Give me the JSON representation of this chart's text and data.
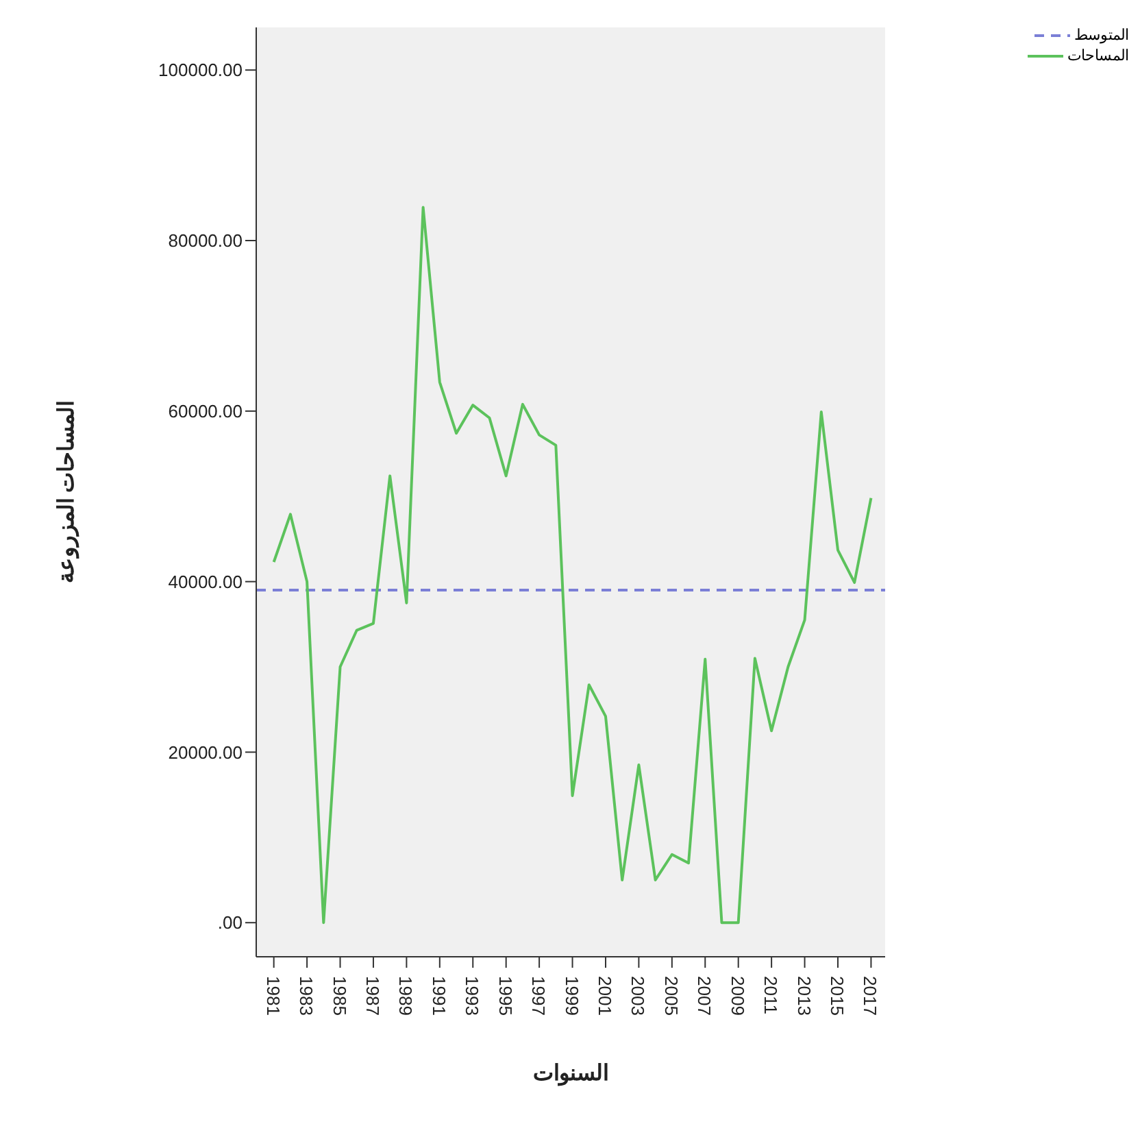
{
  "chart_data": {
    "type": "line",
    "xlabel": "السنوات",
    "ylabel": "المساحات المزروعة",
    "categories": [
      "1981",
      null,
      "1983",
      null,
      "1985",
      null,
      "1987",
      null,
      "1989",
      null,
      "1991",
      null,
      "1993",
      null,
      "1995",
      null,
      "1997",
      null,
      "1999",
      null,
      "2001",
      null,
      "2003",
      null,
      "2005",
      null,
      "2007",
      null,
      "2009",
      null,
      "2011",
      null,
      "2013",
      null,
      "2015",
      null,
      "2017"
    ],
    "series": [
      {
        "name": "المساحات",
        "color": "#5cc25c",
        "values": [
          42300,
          47900,
          40000,
          0,
          30000,
          34300,
          35100,
          52400,
          37500,
          83900,
          63400,
          57400,
          60700,
          59200,
          52400,
          60800,
          57200,
          56000,
          14900,
          27900,
          24200,
          5000,
          18500,
          5000,
          8000,
          7000,
          30900,
          0,
          0,
          31000,
          22500,
          30000,
          35500,
          59900,
          43700,
          39900,
          49800
        ]
      }
    ],
    "ref_lines": [
      {
        "axis": "y",
        "value": 39000,
        "label": "المتوسط",
        "color": "#7b7fd6",
        "line_style": "dashed"
      }
    ],
    "ylim": [
      -4000,
      105000
    ],
    "yticks": [
      {
        "value": 0,
        "label": ".00"
      },
      {
        "value": 20000,
        "label": "20000.00"
      },
      {
        "value": 40000,
        "label": "40000.00"
      },
      {
        "value": 60000,
        "label": "60000.00"
      },
      {
        "value": 80000,
        "label": "80000.00"
      },
      {
        "value": 100000,
        "label": "100000.00"
      }
    ],
    "grid": false,
    "legend": "top right",
    "marker": "none",
    "line_style": "solid"
  }
}
